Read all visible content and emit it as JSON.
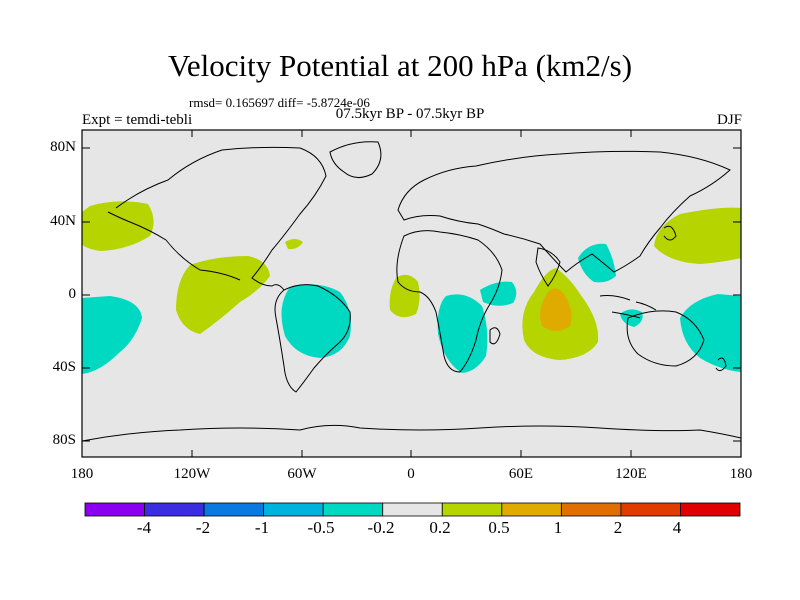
{
  "map": {
    "title": "Velocity Potential at 200 hPa (km2/s)",
    "stats": "rmsd= 0.165697 diff= -5.8724e-06",
    "subtitle": "07.5kyr BP - 07.5kyr BP",
    "left_label": "Expt = temdi-tebli",
    "right_label": "DJF",
    "lat_labels": [
      "80N",
      "40N",
      "0",
      "40S",
      "80S"
    ],
    "lon_labels": [
      "180",
      "120W",
      "60W",
      "0",
      "60E",
      "120E",
      "180"
    ],
    "colors": {
      "background": "#e6e6e6",
      "neg_02": "#00d9c2",
      "pos_02": "#b5d400",
      "pos_05": "#e0ab00"
    }
  },
  "colorbar": {
    "colors": [
      "#8b00f0",
      "#3a2ee0",
      "#0a7ae0",
      "#00b2e0",
      "#00d9c2",
      "#e6e6e6",
      "#b5d400",
      "#e0ab00",
      "#e06e00",
      "#e03c00",
      "#e00000"
    ],
    "labels": [
      "-4",
      "-2",
      "-1",
      "-0.5",
      "-0.2",
      "0.2",
      "0.5",
      "1",
      "2",
      "4"
    ]
  }
}
